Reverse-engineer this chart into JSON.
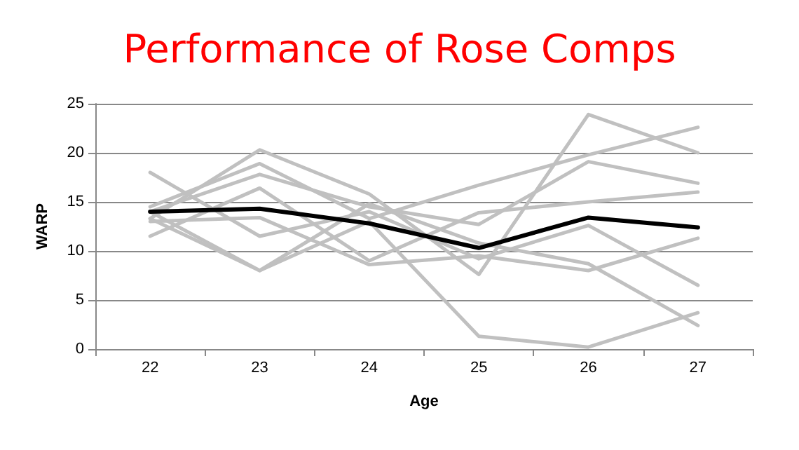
{
  "chart_data": {
    "type": "line",
    "title": "Performance of Rose Comps",
    "xlabel": "Age",
    "ylabel": "WARP",
    "categories": [
      "22",
      "23",
      "24",
      "25",
      "26",
      "27"
    ],
    "series": [
      {
        "color": "#c0c0c0",
        "values": [
          13.3,
          20.3,
          15.8,
          7.6,
          23.9,
          20.0
        ]
      },
      {
        "color": "#c0c0c0",
        "values": [
          14.5,
          18.9,
          13.3,
          16.7,
          19.8,
          22.6
        ]
      },
      {
        "color": "#c0c0c0",
        "values": [
          14.0,
          17.8,
          14.5,
          12.7,
          19.1,
          16.9
        ]
      },
      {
        "color": "#c0c0c0",
        "values": [
          11.5,
          16.4,
          9.0,
          13.9,
          15.0,
          16.0
        ]
      },
      {
        "color": "#c0c0c0",
        "values": [
          13.0,
          13.4,
          8.6,
          9.5,
          8.0,
          11.3
        ]
      },
      {
        "color": "#c0c0c0",
        "values": [
          18.0,
          11.5,
          14.0,
          9.2,
          12.6,
          6.5
        ]
      },
      {
        "color": "#c0c0c0",
        "values": [
          14.0,
          8.0,
          13.0,
          1.3,
          0.2,
          3.7
        ]
      },
      {
        "color": "#c0c0c0",
        "values": [
          13.3,
          8.0,
          14.8,
          10.8,
          8.7,
          2.4
        ]
      },
      {
        "color": "#000000",
        "values": [
          14.0,
          14.3,
          12.8,
          10.3,
          13.4,
          12.4
        ]
      }
    ],
    "ylim": [
      0,
      25
    ],
    "yticks": [
      0,
      5,
      10,
      15,
      20,
      25
    ],
    "grid": "y",
    "marker": "none",
    "line_style": "solid"
  }
}
